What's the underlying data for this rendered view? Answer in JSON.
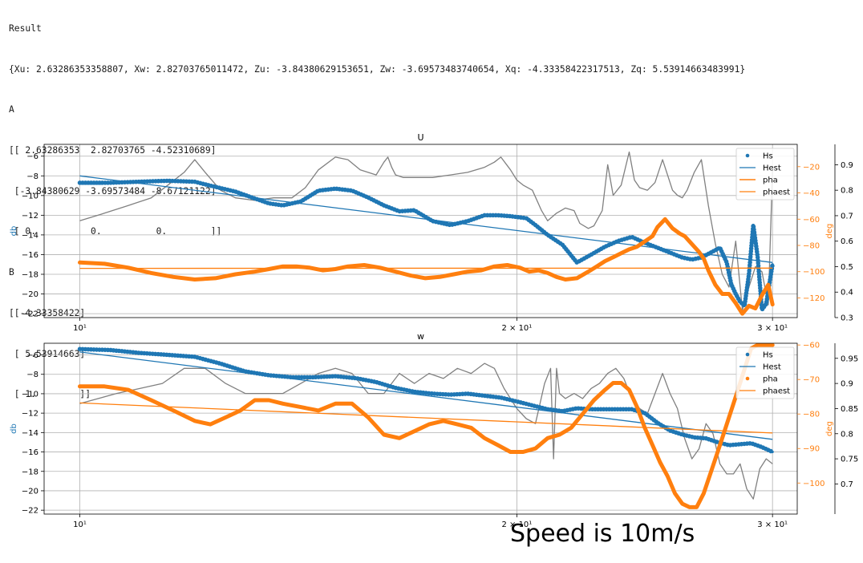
{
  "console": {
    "lines": [
      "Result",
      "{Xu: 2.63286353358807, Xw: 2.82703765011472, Zu: -3.84380629153651, Zw: -3.69573483740654, Xq: -4.33358422317513, Zq: 5.53914663483991}",
      "A",
      "[[ 2.63286353  2.82703765 -4.52310689]",
      " [-3.84380629 -3.69573484 -8.67121122]",
      " [ 0.          0.          0.        ]]",
      "B",
      "[[-4.33358422]",
      " [ 5.53914663]",
      " [ 1.        ]]"
    ]
  },
  "caption": "Speed is 10m/s",
  "colors": {
    "blue": "#1f77b4",
    "orange": "#ff7f0e",
    "gray": "#808080",
    "grid": "#b0b0b0"
  },
  "chart_data": [
    {
      "type": "line",
      "title": "U",
      "xscale": "log",
      "xlim": [
        9.45,
        31.2
      ],
      "xticks": [
        10,
        20,
        30
      ],
      "xticklabels": [
        "10¹",
        "2 × 10¹",
        "3 × 10¹"
      ],
      "grid": true,
      "ylabel": "db",
      "ylim": [
        -22.4,
        -4.8
      ],
      "yticks": [
        -22,
        -20,
        -18,
        -16,
        -14,
        -12,
        -10,
        -8,
        -6
      ],
      "y2label": "deg",
      "y2lim": [
        -135,
        -3
      ],
      "y2ticks": [
        -120,
        -100,
        -80,
        -60,
        -40,
        -20
      ],
      "y3lim": [
        0.3,
        0.98
      ],
      "y3ticks": [
        0.3,
        0.4,
        0.5,
        0.6,
        0.7,
        0.8,
        0.9
      ],
      "legend": {
        "position": "upper right",
        "entries": [
          "Hs",
          "Hest",
          "pha",
          "phaest"
        ]
      },
      "series": [
        {
          "name": "Hs",
          "style": "markers",
          "axis": "y",
          "color": "#1f77b4",
          "x": [
            10,
            10.5,
            11,
            11.5,
            12,
            12.3,
            12.8,
            13.2,
            13.5,
            13.8,
            14.2,
            14.6,
            15,
            15.4,
            15.8,
            16.2,
            16.6,
            17,
            17.5,
            18,
            18.5,
            19,
            19.4,
            19.8,
            20.3,
            20.6,
            21,
            21.5,
            22,
            22.5,
            23,
            23.5,
            24,
            24.5,
            25,
            25.5,
            26,
            26.4,
            26.8,
            27.2,
            27.6,
            27.9,
            28.1,
            28.3,
            28.5,
            28.7,
            28.9,
            29.1,
            29.3,
            29.5,
            29.7,
            30
          ],
          "y": [
            -8.7,
            -8.7,
            -8.6,
            -8.5,
            -8.6,
            -9,
            -9.6,
            -10.3,
            -10.8,
            -11,
            -10.6,
            -9.5,
            -9.3,
            -9.5,
            -10.2,
            -11,
            -11.6,
            -11.5,
            -12.6,
            -13,
            -12.6,
            -12,
            -12,
            -12.1,
            -12.3,
            -13,
            -14,
            -15,
            -16.8,
            -16,
            -15.2,
            -14.6,
            -14.2,
            -14.8,
            -15.3,
            -15.8,
            -16.3,
            -16.5,
            -16.3,
            -15.8,
            -15.3,
            -16.8,
            -19,
            -20,
            -20.8,
            -21.2,
            -18,
            -13,
            -16.2,
            -21.6,
            -21,
            -17
          ]
        },
        {
          "name": "Hest",
          "style": "line",
          "axis": "y",
          "color": "#1f77b4",
          "x": [
            10,
            30
          ],
          "y": [
            -8.0,
            -16.8
          ]
        },
        {
          "name": "pha",
          "style": "thick",
          "axis": "y2",
          "color": "#ff7f0e",
          "x": [
            10,
            10.4,
            10.8,
            11.2,
            11.6,
            12,
            12.4,
            12.8,
            13.2,
            13.5,
            13.8,
            14.1,
            14.4,
            14.7,
            15,
            15.3,
            15.7,
            16.1,
            16.5,
            16.9,
            17.3,
            17.7,
            18.1,
            18.5,
            18.9,
            19.3,
            19.7,
            20.1,
            20.4,
            20.7,
            21,
            21.3,
            21.6,
            22,
            22.4,
            22.7,
            23,
            23.3,
            23.6,
            23.9,
            24.2,
            24.5,
            24.8,
            25,
            25.3,
            25.6,
            25.9,
            26.1,
            26.3,
            26.5,
            26.7,
            26.9,
            27.1,
            27.4,
            27.7,
            28,
            28.3,
            28.6,
            28.9,
            29.2,
            29.5,
            29.8,
            30
          ],
          "y": [
            -93,
            -94,
            -97,
            -101,
            -104,
            -106,
            -105,
            -102,
            -100,
            -98,
            -96,
            -96,
            -97,
            -99,
            -98,
            -96,
            -95,
            -97,
            -100,
            -103,
            -105,
            -104,
            -102,
            -100,
            -99,
            -96,
            -95,
            -97,
            -100,
            -99,
            -101,
            -104,
            -106,
            -105,
            -100,
            -96,
            -92,
            -89,
            -86,
            -83,
            -81,
            -77,
            -73,
            -66,
            -60,
            -67,
            -71,
            -73,
            -77,
            -81,
            -85,
            -90,
            -99,
            -110,
            -117,
            -117,
            -124,
            -132,
            -126,
            -128,
            -118,
            -110,
            -125
          ]
        },
        {
          "name": "phaest",
          "style": "line",
          "axis": "y2",
          "color": "#ff7f0e",
          "x": [
            10,
            30
          ],
          "y": [
            -97.5,
            -97.3
          ]
        },
        {
          "name": "",
          "style": "line",
          "axis": "y3",
          "color": "#808080",
          "x": [
            10,
            10.4,
            10.8,
            11.2,
            11.5,
            11.8,
            12,
            12.2,
            12.5,
            12.8,
            13.2,
            13.6,
            14,
            14.3,
            14.6,
            15,
            15.3,
            15.6,
            16,
            16.2,
            16.3,
            16.4,
            16.5,
            16.7,
            17,
            17.5,
            18,
            18.5,
            19,
            19.3,
            19.5,
            19.8,
            20,
            20.2,
            20.5,
            20.8,
            21,
            21.3,
            21.6,
            21.9,
            22.1,
            22.4,
            22.6,
            22.9,
            23.1,
            23.3,
            23.6,
            23.9,
            24.1,
            24.3,
            24.6,
            24.9,
            25.2,
            25.6,
            25.8,
            26,
            26.2,
            26.5,
            26.8,
            27.1,
            27.4,
            27.7,
            28.0,
            28.3,
            28.6,
            28.9,
            29.2,
            29.5,
            29.8,
            30
          ],
          "y": [
            0.68,
            0.71,
            0.74,
            0.77,
            0.82,
            0.87,
            0.92,
            0.87,
            0.8,
            0.77,
            0.76,
            0.77,
            0.77,
            0.81,
            0.88,
            0.93,
            0.92,
            0.88,
            0.86,
            0.91,
            0.93,
            0.89,
            0.86,
            0.85,
            0.85,
            0.85,
            0.86,
            0.87,
            0.89,
            0.91,
            0.93,
            0.88,
            0.84,
            0.82,
            0.8,
            0.72,
            0.68,
            0.71,
            0.73,
            0.72,
            0.67,
            0.65,
            0.66,
            0.72,
            0.9,
            0.78,
            0.82,
            0.95,
            0.84,
            0.81,
            0.8,
            0.83,
            0.92,
            0.8,
            0.78,
            0.77,
            0.8,
            0.87,
            0.92,
            0.74,
            0.59,
            0.47,
            0.42,
            0.6,
            0.33,
            0.42,
            0.5,
            0.48,
            0.35,
            0.88
          ]
        }
      ]
    },
    {
      "type": "line",
      "title": "w",
      "xscale": "log",
      "xlim": [
        9.45,
        31.2
      ],
      "xticks": [
        10,
        20,
        30
      ],
      "xticklabels": [
        "10¹",
        "2 × 10¹",
        "3 × 10¹"
      ],
      "grid": true,
      "ylabel": "db",
      "ylim": [
        -22.4,
        -4.8
      ],
      "yticks": [
        -22,
        -20,
        -18,
        -16,
        -14,
        -12,
        -10,
        -8,
        -6
      ],
      "y2label": "deg",
      "y2lim": [
        -109,
        -59.5
      ],
      "y2ticks": [
        -100,
        -90,
        -80,
        -70,
        -60
      ],
      "y3lim": [
        0.64,
        0.98
      ],
      "y3ticks": [
        0.7,
        0.75,
        0.8,
        0.85,
        0.9,
        0.95
      ],
      "legend": {
        "position": "upper right",
        "entries": [
          "Hs",
          "Hest",
          "pha",
          "phaest"
        ]
      },
      "series": [
        {
          "name": "Hs",
          "style": "markers",
          "axis": "y",
          "color": "#1f77b4",
          "x": [
            10,
            10.5,
            11,
            11.5,
            12,
            12.5,
            13,
            13.5,
            14,
            14.5,
            15,
            15.5,
            16,
            16.5,
            17,
            17.5,
            18,
            18.5,
            19,
            19.5,
            20,
            20.5,
            21,
            21.5,
            22,
            22.5,
            23,
            23.5,
            24,
            24.5,
            25,
            25.5,
            26,
            26.5,
            27,
            27.5,
            28,
            28.5,
            29,
            29.5,
            30
          ],
          "y": [
            -5.4,
            -5.5,
            -5.8,
            -6,
            -6.2,
            -6.9,
            -7.7,
            -8.1,
            -8.3,
            -8.3,
            -8.2,
            -8.4,
            -8.8,
            -9.4,
            -9.8,
            -10,
            -10.1,
            -10,
            -10.2,
            -10.4,
            -10.8,
            -11.2,
            -11.6,
            -11.8,
            -11.5,
            -11.6,
            -11.6,
            -11.6,
            -11.6,
            -12,
            -13,
            -13.8,
            -14.2,
            -14.5,
            -14.6,
            -15,
            -15.3,
            -15.2,
            -15.1,
            -15.5,
            -16
          ]
        },
        {
          "name": "Hest",
          "style": "line",
          "axis": "y",
          "color": "#1f77b4",
          "x": [
            10,
            30
          ],
          "y": [
            -5.7,
            -14.7
          ]
        },
        {
          "name": "pha",
          "style": "thick",
          "axis": "y2",
          "color": "#ff7f0e",
          "x": [
            10,
            10.4,
            10.8,
            11.2,
            11.6,
            12,
            12.3,
            12.6,
            12.9,
            13.2,
            13.5,
            13.8,
            14.2,
            14.6,
            15,
            15.4,
            15.8,
            16.2,
            16.6,
            17,
            17.4,
            17.8,
            18.2,
            18.6,
            19,
            19.4,
            19.8,
            20.2,
            20.6,
            21,
            21.4,
            21.8,
            22.2,
            22.6,
            23,
            23.3,
            23.6,
            23.9,
            24.2,
            24.5,
            24.8,
            25.1,
            25.4,
            25.7,
            26,
            26.3,
            26.6,
            26.9,
            27.2,
            27.5,
            27.8,
            28.1,
            28.4,
            28.7,
            29,
            29.3,
            29.6,
            29.8,
            30
          ],
          "y": [
            -72,
            -72,
            -73,
            -76,
            -79,
            -82,
            -83,
            -81,
            -79,
            -76,
            -76,
            -77,
            -78,
            -79,
            -77,
            -77,
            -81,
            -86,
            -87,
            -85,
            -83,
            -82,
            -83,
            -84,
            -87,
            -89,
            -91,
            -91,
            -90,
            -87,
            -86,
            -84,
            -80,
            -76,
            -73,
            -71,
            -71,
            -73,
            -78,
            -84,
            -89,
            -94,
            -98,
            -103,
            -106,
            -107,
            -107,
            -103,
            -97,
            -91,
            -85,
            -79,
            -73,
            -67,
            -61,
            -60,
            -60,
            -60,
            -60
          ]
        },
        {
          "name": "phaest",
          "style": "line",
          "axis": "y2",
          "color": "#ff7f0e",
          "x": [
            10,
            30
          ],
          "y": [
            -76.8,
            -85.5
          ]
        },
        {
          "name": "",
          "style": "line",
          "axis": "y3",
          "color": "#808080",
          "x": [
            10,
            10.3,
            10.6,
            11,
            11.4,
            11.8,
            12.2,
            12.6,
            13,
            13.4,
            13.8,
            14.2,
            14.6,
            15,
            15.4,
            15.8,
            16.2,
            16.6,
            17,
            17.4,
            17.8,
            18.2,
            18.6,
            19,
            19.3,
            19.6,
            20,
            20.3,
            20.6,
            20.9,
            21.1,
            21.2,
            21.3,
            21.4,
            21.6,
            21.9,
            22.2,
            22.5,
            22.8,
            23.1,
            23.4,
            23.7,
            24,
            24.3,
            24.6,
            24.9,
            25.2,
            25.5,
            25.8,
            26.1,
            26.4,
            26.7,
            27,
            27.3,
            27.6,
            27.9,
            28.2,
            28.5,
            28.8,
            29.1,
            29.4,
            29.7,
            30
          ],
          "y": [
            0.86,
            0.87,
            0.88,
            0.89,
            0.9,
            0.93,
            0.93,
            0.9,
            0.88,
            0.88,
            0.88,
            0.9,
            0.92,
            0.93,
            0.92,
            0.88,
            0.88,
            0.92,
            0.9,
            0.92,
            0.91,
            0.93,
            0.92,
            0.94,
            0.93,
            0.89,
            0.85,
            0.83,
            0.82,
            0.9,
            0.93,
            0.75,
            0.93,
            0.88,
            0.87,
            0.88,
            0.87,
            0.89,
            0.9,
            0.92,
            0.93,
            0.91,
            0.87,
            0.85,
            0.84,
            0.88,
            0.92,
            0.88,
            0.85,
            0.79,
            0.75,
            0.77,
            0.82,
            0.8,
            0.74,
            0.72,
            0.72,
            0.74,
            0.69,
            0.67,
            0.73,
            0.75,
            0.74
          ]
        }
      ]
    }
  ]
}
